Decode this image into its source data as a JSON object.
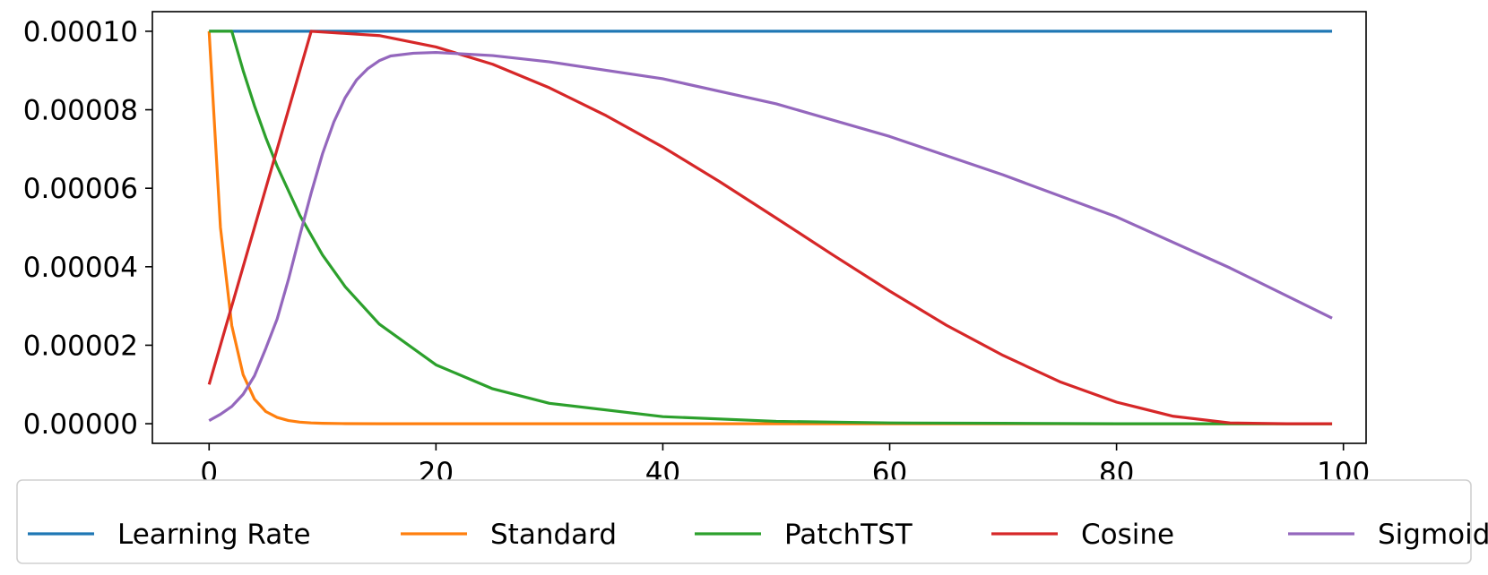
{
  "chart_data": {
    "type": "line",
    "title": "",
    "xlabel": "",
    "ylabel": "",
    "xlim": [
      -5,
      102
    ],
    "ylim": [
      -5e-06,
      0.000105
    ],
    "grid": false,
    "legend_placement": "bottom-center",
    "xticks": [
      0,
      20,
      40,
      60,
      80,
      100
    ],
    "xtick_labels": [
      "0",
      "20",
      "40",
      "60",
      "80",
      "100"
    ],
    "yticks": [
      0.0,
      2e-05,
      4e-05,
      6e-05,
      8e-05,
      0.0001
    ],
    "ytick_labels": [
      "0.00000",
      "0.00002",
      "0.00004",
      "0.00006",
      "0.00008",
      "0.00010"
    ],
    "series": [
      {
        "name": "Learning Rate",
        "color": "#1f77b4",
        "x": [
          0,
          99
        ],
        "values": [
          0.0001,
          0.0001
        ]
      },
      {
        "name": "Standard",
        "color": "#ff7f0e",
        "x": [
          0,
          1,
          2,
          3,
          4,
          5,
          6,
          7,
          8,
          9,
          10,
          12,
          15,
          99
        ],
        "values": [
          0.0001,
          5e-05,
          2.5e-05,
          1.25e-05,
          6.25e-06,
          3.1e-06,
          1.6e-06,
          8e-07,
          4e-07,
          2e-07,
          1e-07,
          2e-08,
          0.0,
          0.0
        ]
      },
      {
        "name": "PatchTST",
        "color": "#2ca02c",
        "x": [
          0,
          2,
          3,
          4,
          5,
          6,
          8,
          10,
          12,
          15,
          20,
          25,
          30,
          40,
          50,
          60,
          70,
          80,
          99
        ],
        "values": [
          0.0001,
          0.0001,
          9e-05,
          8.1e-05,
          7.29e-05,
          6.56e-05,
          5.31e-05,
          4.3e-05,
          3.49e-05,
          2.54e-05,
          1.5e-05,
          8.9e-06,
          5.2e-06,
          1.8e-06,
          6e-07,
          2e-07,
          1e-07,
          0.0,
          0.0
        ]
      },
      {
        "name": "Cosine",
        "color": "#d62728",
        "x": [
          0,
          9,
          15,
          20,
          25,
          30,
          35,
          40,
          45,
          50,
          55,
          60,
          65,
          70,
          75,
          80,
          85,
          90,
          95,
          99
        ],
        "values": [
          1e-05,
          0.0001,
          9.89e-05,
          9.6e-05,
          9.16e-05,
          8.56e-05,
          7.85e-05,
          7.05e-05,
          6.17e-05,
          5.24e-05,
          4.3e-05,
          3.38e-05,
          2.51e-05,
          1.74e-05,
          1.07e-05,
          5.5e-06,
          1.9e-06,
          2e-07,
          0.0,
          0.0
        ]
      },
      {
        "name": "Sigmoid",
        "color": "#9467bd",
        "x": [
          0,
          1,
          2,
          3,
          4,
          5,
          6,
          7,
          8,
          9,
          10,
          11,
          12,
          13,
          14,
          15,
          16,
          18,
          20,
          25,
          30,
          40,
          50,
          60,
          70,
          80,
          90,
          99
        ],
        "values": [
          8e-07,
          2.4e-06,
          4.4e-06,
          7.5e-06,
          1.22e-05,
          1.92e-05,
          2.67e-05,
          3.68e-05,
          4.8e-05,
          5.88e-05,
          6.88e-05,
          7.69e-05,
          8.31e-05,
          8.76e-05,
          9.05e-05,
          9.25e-05,
          9.37e-05,
          9.44e-05,
          9.46e-05,
          9.38e-05,
          9.22e-05,
          8.79e-05,
          8.15e-05,
          7.32e-05,
          6.34e-05,
          5.27e-05,
          3.97e-05,
          2.69e-05
        ]
      }
    ]
  }
}
